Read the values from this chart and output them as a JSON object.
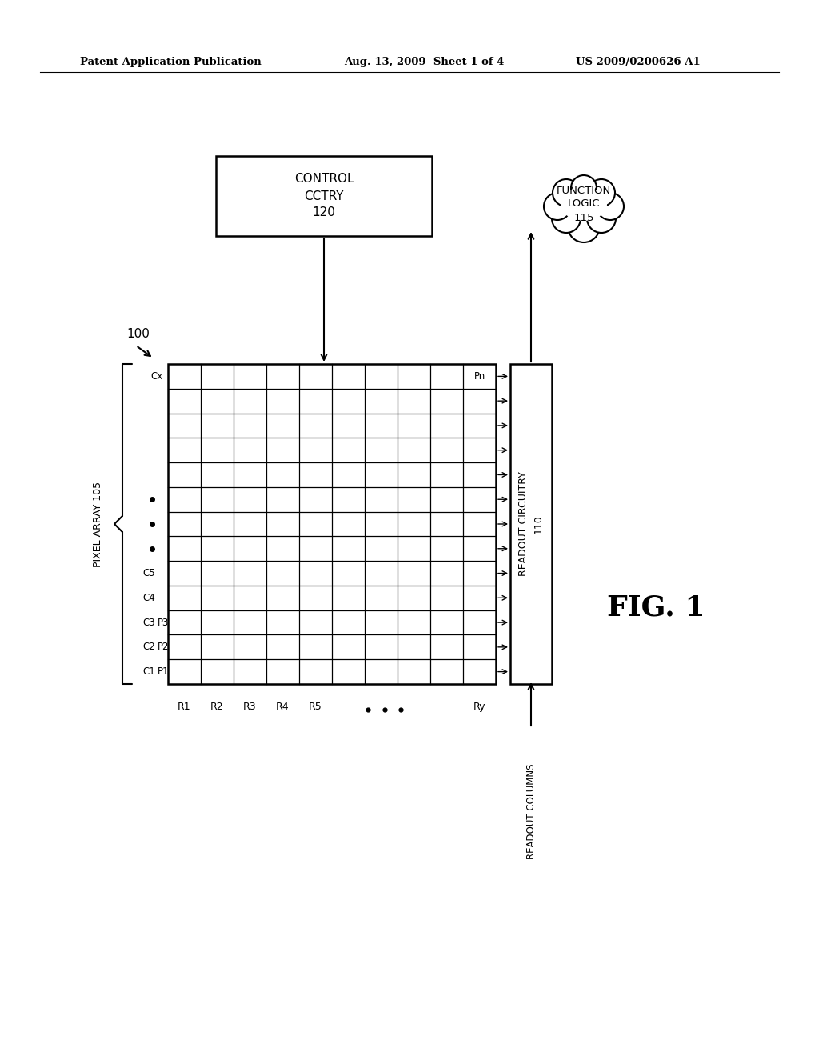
{
  "title_left": "Patent Application Publication",
  "title_mid": "Aug. 13, 2009  Sheet 1 of 4",
  "title_right": "US 2009/0200626 A1",
  "fig_label": "FIG. 1",
  "system_label": "100",
  "control_label": "CONTROL\nCCTRY\n120",
  "function_label": "FUNCTION\nLOGIC\n115",
  "pixel_array_label": "PIXEL ARRAY 105",
  "readout_label": "READOUT CIRCUITRY\n110",
  "readout_columns_label": "READOUT COLUMNS",
  "num_grid_cols": 10,
  "num_grid_rows": 13,
  "background_color": "#ffffff",
  "line_color": "#000000"
}
